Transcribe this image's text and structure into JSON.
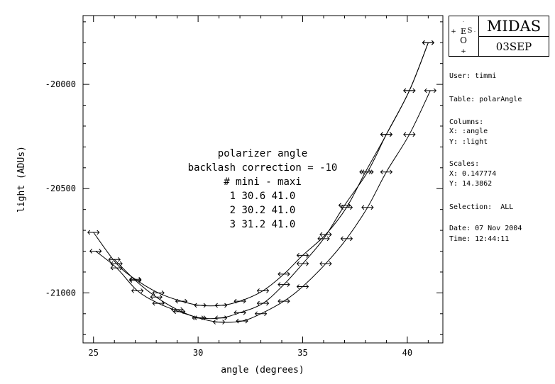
{
  "logo": {
    "name": "MIDAS",
    "date": "03SEP",
    "emblem": "ESO"
  },
  "info": {
    "user": "User: timmi",
    "table": "Table: polarAngle",
    "columns_title": "Columns:",
    "columns_x": "X: :angle",
    "columns_y": "Y: :light",
    "scales_title": "Scales:",
    "scales_x": "X: 0.147774",
    "scales_y": "Y: 14.3862",
    "selection": "Selection:  ALL",
    "date": "Date: 07 Nov 2004",
    "time": "Time: 12:44:11"
  },
  "chart_data": {
    "type": "scatter",
    "xlabel": "angle (degrees)",
    "ylabel": "light (ADUs)",
    "xlim": [
      24.5,
      41.7
    ],
    "ylim": [
      -21240,
      -19670
    ],
    "xticks": [
      25,
      30,
      35,
      40
    ],
    "yticks": [
      -20000,
      -20500,
      -21000
    ],
    "annotation": [
      "polarizer angle",
      "backlash correction = -10",
      "# mini - maxi",
      "1 30.6 41.0",
      "2 30.2 41.0",
      "3 31.2 41.0"
    ],
    "marker": "double-arrow",
    "series": [
      {
        "x": [
          25.0,
          26.1,
          27.0,
          28.1,
          29.2,
          30.1,
          31.1,
          32.0,
          33.1,
          34.1,
          35.0,
          36.1,
          37.1,
          38.0,
          39.0,
          40.1,
          41.0
        ],
        "y": [
          -20710,
          -20860,
          -20935,
          -21000,
          -21040,
          -21060,
          -21060,
          -21040,
          -20990,
          -20910,
          -20820,
          -20720,
          -20590,
          -20420,
          -20240,
          -20030,
          -19800
        ]
      },
      {
        "x": [
          25.1,
          26.1,
          27.1,
          28.1,
          29.1,
          30.1,
          31.1,
          32.0,
          33.1,
          34.1,
          35.0,
          36.0,
          37.0,
          38.1,
          39.0,
          40.1,
          41.0
        ],
        "y": [
          -20800,
          -20880,
          -20990,
          -21050,
          -21090,
          -21120,
          -21120,
          -21095,
          -21050,
          -20960,
          -20860,
          -20740,
          -20580,
          -20420,
          -20240,
          -20030,
          -19800
        ]
      },
      {
        "x": [
          26.0,
          27.0,
          28.0,
          29.0,
          30.0,
          31.0,
          32.1,
          33.0,
          34.1,
          35.0,
          36.1,
          37.1,
          38.1,
          39.0,
          40.1,
          41.1
        ],
        "y": [
          -20840,
          -20940,
          -21020,
          -21080,
          -21120,
          -21140,
          -21135,
          -21100,
          -21040,
          -20970,
          -20860,
          -20740,
          -20590,
          -20420,
          -20240,
          -20030
        ]
      }
    ],
    "grid": false
  }
}
